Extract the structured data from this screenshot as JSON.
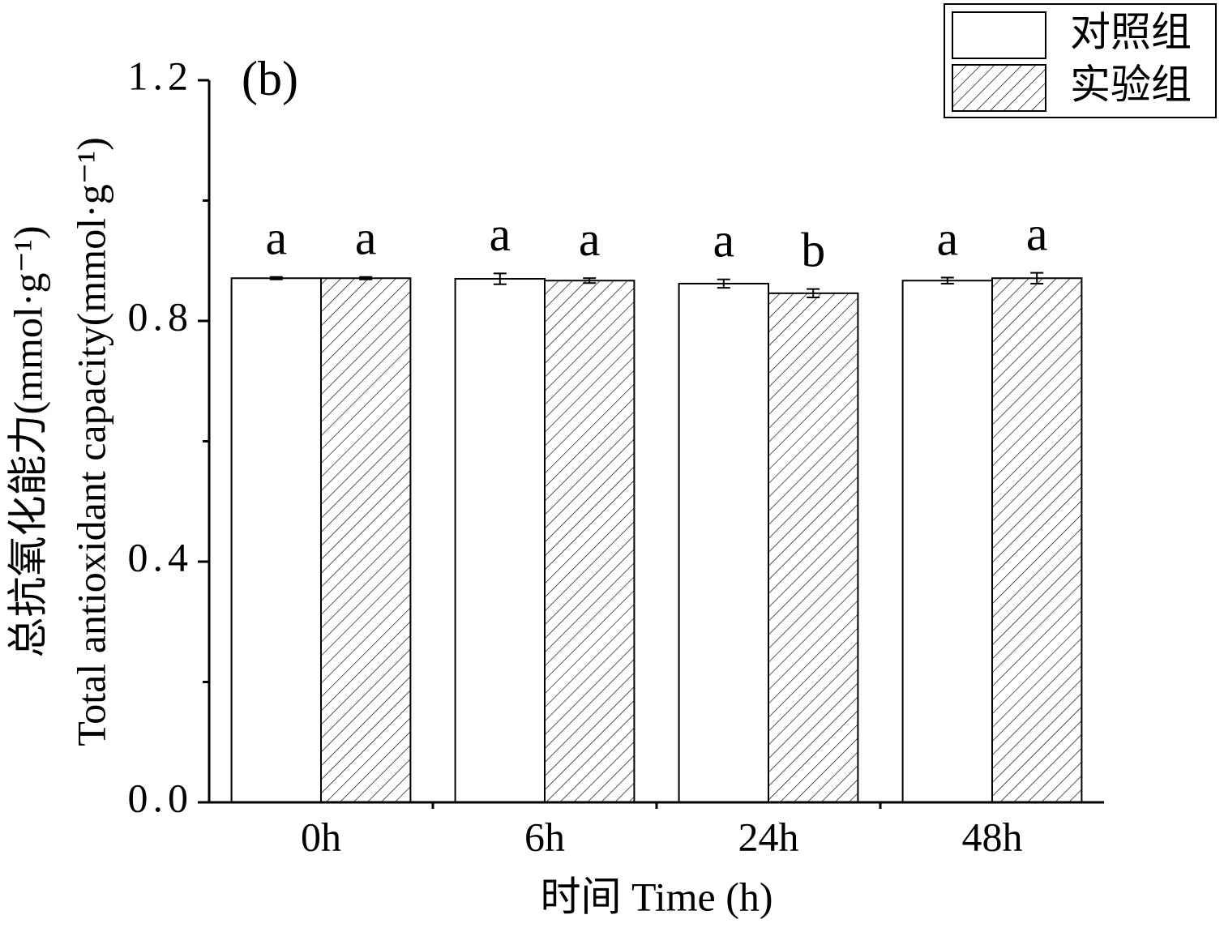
{
  "chart_data": {
    "type": "bar",
    "panel_label": "(b)",
    "x_label": "时间 Time (h)",
    "y_label": [
      "总抗氧化能力(mmol·g⁻¹)",
      "Total antioxidant capacity(mmol·g⁻¹)"
    ],
    "categories": [
      "0h",
      "6h",
      "24h",
      "48h"
    ],
    "series": [
      {
        "name": "对照组",
        "color": "#ffffff",
        "hatch": false,
        "values": [
          0.871,
          0.87,
          0.862,
          0.867
        ],
        "errors": [
          0.002,
          0.009,
          0.007,
          0.005
        ],
        "letters": [
          "a",
          "a",
          "a",
          "a"
        ]
      },
      {
        "name": "实验组",
        "color": "#ffffff",
        "hatch": true,
        "values": [
          0.871,
          0.867,
          0.846,
          0.871
        ],
        "errors": [
          0.002,
          0.004,
          0.007,
          0.009
        ],
        "letters": [
          "a",
          "a",
          "b",
          "a"
        ]
      }
    ],
    "ylim": [
      0,
      1.2
    ],
    "yticks": [
      {
        "value": 0,
        "label": "0.0"
      },
      0.4,
      0.8,
      1.2
    ],
    "yminor_ticks": [
      0.2,
      0.6,
      1.0
    ],
    "legend": "top-right"
  }
}
